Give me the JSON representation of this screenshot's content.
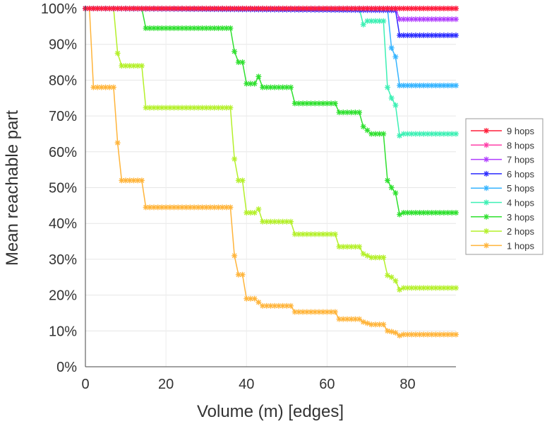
{
  "chart_data": {
    "type": "line",
    "title": "",
    "xlabel": "Volume (m) [edges]",
    "ylabel": "Mean reachable part",
    "xlim": [
      0,
      92
    ],
    "ylim": [
      0,
      100
    ],
    "xticks": [
      "0",
      "20",
      "40",
      "60",
      "80"
    ],
    "xtick_values": [
      0,
      20,
      40,
      60,
      80
    ],
    "yticks": [
      "0%",
      "10%",
      "20%",
      "30%",
      "40%",
      "50%",
      "60%",
      "70%",
      "80%",
      "90%",
      "100%"
    ],
    "ytick_values": [
      0,
      10,
      20,
      30,
      40,
      50,
      60,
      70,
      80,
      90,
      100
    ],
    "grid": true,
    "legend_position": "right",
    "series": [
      {
        "name": "9 hops",
        "color": "#ff1f3a",
        "points": [
          [
            0,
            100
          ],
          [
            92,
            100
          ]
        ]
      },
      {
        "name": "8 hops",
        "color": "#ff3fa8",
        "points": [
          [
            0,
            100
          ],
          [
            92,
            100
          ]
        ]
      },
      {
        "name": "7 hops",
        "color": "#b03cff",
        "points": [
          [
            0,
            100
          ],
          [
            77,
            100
          ],
          [
            78,
            97
          ],
          [
            92,
            97
          ]
        ]
      },
      {
        "name": "6 hops",
        "color": "#2a2aff",
        "points": [
          [
            0,
            100
          ],
          [
            77,
            99.5
          ],
          [
            78,
            92.5
          ],
          [
            92,
            92.5
          ]
        ]
      },
      {
        "name": "5 hops",
        "color": "#35b4ff",
        "points": [
          [
            0,
            100
          ],
          [
            75,
            100
          ],
          [
            76,
            89
          ],
          [
            77,
            86.5
          ],
          [
            78,
            78.5
          ],
          [
            92,
            78.5
          ]
        ]
      },
      {
        "name": "4 hops",
        "color": "#3cf0b4",
        "points": [
          [
            0,
            100
          ],
          [
            68,
            100
          ],
          [
            69,
            95.5
          ],
          [
            70,
            96.5
          ],
          [
            74,
            96.5
          ],
          [
            75,
            78
          ],
          [
            76,
            75
          ],
          [
            77,
            73
          ],
          [
            78,
            64.5
          ],
          [
            79,
            65
          ],
          [
            92,
            65
          ]
        ]
      },
      {
        "name": "3 hops",
        "color": "#2ee02e",
        "points": [
          [
            0,
            100
          ],
          [
            14,
            100
          ],
          [
            15,
            94.5
          ],
          [
            36,
            94.5
          ],
          [
            37,
            88
          ],
          [
            38,
            85
          ],
          [
            39,
            85
          ],
          [
            40,
            79
          ],
          [
            42,
            79
          ],
          [
            43,
            81
          ],
          [
            44,
            78
          ],
          [
            51,
            78
          ],
          [
            52,
            73.5
          ],
          [
            62,
            73.5
          ],
          [
            63,
            71
          ],
          [
            68,
            71
          ],
          [
            69,
            67
          ],
          [
            70,
            66
          ],
          [
            71,
            65
          ],
          [
            74,
            65
          ],
          [
            75,
            52
          ],
          [
            76,
            50
          ],
          [
            77,
            48.5
          ],
          [
            78,
            42.5
          ],
          [
            79,
            43
          ],
          [
            92,
            43
          ]
        ]
      },
      {
        "name": "2 hops",
        "color": "#b4f02a",
        "points": [
          [
            0,
            100
          ],
          [
            7,
            100
          ],
          [
            8,
            87.5
          ],
          [
            9,
            84
          ],
          [
            14,
            84
          ],
          [
            15,
            72.3
          ],
          [
            36,
            72.3
          ],
          [
            37,
            58
          ],
          [
            38,
            52
          ],
          [
            39,
            52
          ],
          [
            40,
            43
          ],
          [
            42,
            43
          ],
          [
            43,
            44
          ],
          [
            44,
            40.5
          ],
          [
            51,
            40.5
          ],
          [
            52,
            37
          ],
          [
            62,
            37
          ],
          [
            63,
            33.5
          ],
          [
            68,
            33.5
          ],
          [
            69,
            31.5
          ],
          [
            70,
            31
          ],
          [
            71,
            30.5
          ],
          [
            74,
            30.5
          ],
          [
            75,
            25.5
          ],
          [
            76,
            25
          ],
          [
            77,
            24
          ],
          [
            78,
            21.5
          ],
          [
            79,
            22
          ],
          [
            92,
            22
          ]
        ]
      },
      {
        "name": "1 hops",
        "color": "#ffb43a",
        "points": [
          [
            0,
            100
          ],
          [
            1,
            100
          ],
          [
            2,
            78
          ],
          [
            7,
            78
          ],
          [
            8,
            62.5
          ],
          [
            9,
            52
          ],
          [
            14,
            52
          ],
          [
            15,
            44.5
          ],
          [
            36,
            44.5
          ],
          [
            37,
            31
          ],
          [
            38,
            25.7
          ],
          [
            39,
            25.7
          ],
          [
            40,
            19
          ],
          [
            42,
            19
          ],
          [
            43,
            18
          ],
          [
            44,
            17
          ],
          [
            51,
            17
          ],
          [
            52,
            15.3
          ],
          [
            62,
            15.3
          ],
          [
            63,
            13.3
          ],
          [
            68,
            13.3
          ],
          [
            69,
            12.5
          ],
          [
            71,
            11.8
          ],
          [
            74,
            11.8
          ],
          [
            75,
            10
          ],
          [
            76,
            9.8
          ],
          [
            77,
            9.5
          ],
          [
            78,
            8.7
          ],
          [
            79,
            9
          ],
          [
            92,
            9
          ]
        ]
      }
    ]
  }
}
